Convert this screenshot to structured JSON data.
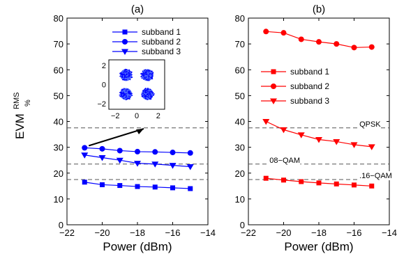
{
  "chart_data": [
    {
      "type": "line",
      "panel_label": "(a)",
      "xlabel": "Power (dBm)",
      "ylabel_main": "EVM",
      "ylabel_sup": "RMS",
      "ylabel_sub": "%",
      "xlim": [
        -22,
        -14
      ],
      "ylim": [
        0,
        80
      ],
      "xticks": [
        -22,
        -20,
        -18,
        -16,
        -14
      ],
      "yticks": [
        0,
        10,
        20,
        30,
        40,
        50,
        60,
        70,
        80
      ],
      "grid": false,
      "legend_position": "top-right",
      "x": [
        -21,
        -20,
        -19,
        -18,
        -17,
        -16,
        -15
      ],
      "series": [
        {
          "name": "subband 1",
          "marker": "square",
          "color": "#0000ff",
          "values": [
            16.5,
            15.5,
            15.2,
            14.8,
            14.6,
            14.3,
            14.0
          ]
        },
        {
          "name": "subband 2",
          "marker": "circle",
          "color": "#0000ff",
          "values": [
            29.8,
            29.4,
            28.7,
            28.3,
            28.2,
            28.0,
            27.8
          ]
        },
        {
          "name": "subband 3",
          "marker": "triangle-down",
          "color": "#0000ff",
          "values": [
            27.0,
            26.0,
            25.0,
            23.8,
            23.5,
            23.0,
            22.5
          ]
        }
      ],
      "reference_lines": [
        37.5,
        23.5,
        17.5
      ],
      "inset": {
        "type": "scatter",
        "description": "constellation diagram",
        "xticks": [
          -2,
          0,
          2
        ],
        "yticks": [
          -2,
          0,
          2
        ],
        "clusters": [
          [
            -1,
            1
          ],
          [
            1,
            1
          ],
          [
            -1,
            -1
          ],
          [
            1,
            -1
          ]
        ]
      }
    },
    {
      "type": "line",
      "panel_label": "(b)",
      "xlabel": "Power (dBm)",
      "xlim": [
        -22,
        -14
      ],
      "ylim": [
        0,
        80
      ],
      "xticks": [
        -22,
        -20,
        -18,
        -16,
        -14
      ],
      "yticks": [
        0,
        10,
        20,
        30,
        40,
        50,
        60,
        70,
        80
      ],
      "grid": false,
      "legend_position": "center-right",
      "x": [
        -21,
        -20,
        -19,
        -18,
        -17,
        -16,
        -15
      ],
      "series": [
        {
          "name": "subband 1",
          "marker": "square",
          "color": "#ff0000",
          "values": [
            18.0,
            17.3,
            16.7,
            16.2,
            15.8,
            15.4,
            15.0
          ]
        },
        {
          "name": "subband 2",
          "marker": "circle",
          "color": "#ff0000",
          "values": [
            74.8,
            74.3,
            71.8,
            70.8,
            70.0,
            68.6,
            68.8
          ]
        },
        {
          "name": "subband 3",
          "marker": "triangle-down",
          "color": "#ff0000",
          "values": [
            40.0,
            36.8,
            34.8,
            33.0,
            32.2,
            31.0,
            30.2
          ]
        }
      ],
      "reference_lines": [
        37.5,
        23.5,
        17.5
      ],
      "annotations": [
        {
          "text": "QPSK",
          "x": -15.7,
          "y": 37.5
        },
        {
          "text": "08−QAM",
          "x": -20.8,
          "y": 23.5
        },
        {
          "text": ".16−QAM",
          "x": -15.7,
          "y": 17.5
        }
      ]
    }
  ]
}
